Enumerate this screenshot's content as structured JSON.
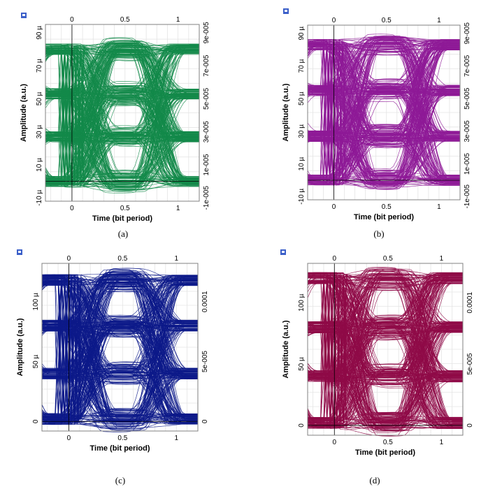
{
  "chart_data": [
    {
      "type": "line",
      "subtype": "eye-diagram",
      "caption": "(a)",
      "color": "#138a4a",
      "xlabel": "Time (bit period)",
      "ylabel": "Amplitude (a.u.)",
      "xlim": [
        -0.25,
        1.2
      ],
      "ylim": [
        -12,
        95
      ],
      "levels": [
        0,
        27,
        53,
        80
      ],
      "x_ticks": [
        "0",
        "0.5",
        "1"
      ],
      "x_top_ticks": [
        "0",
        "0.5",
        "1"
      ],
      "y_left_ticks": [
        "-10 µ",
        "10 µ",
        "30 µ",
        "50 µ",
        "70 µ",
        "90 µ"
      ],
      "y_right_ticks": [
        "-1e-005",
        "1e-005",
        "3e-005",
        "5e-005",
        "7e-005",
        "9e-005"
      ]
    },
    {
      "type": "line",
      "subtype": "eye-diagram",
      "caption": "(b)",
      "color": "#8e1a96",
      "xlabel": "Time (bit period)",
      "ylabel": "Amplitude (a.u.)",
      "xlim": [
        -0.25,
        1.2
      ],
      "ylim": [
        -12,
        95
      ],
      "levels": [
        0,
        27,
        55,
        83
      ],
      "x_ticks": [
        "0",
        "0.5",
        "1"
      ],
      "x_top_ticks": [
        "0",
        "0.5",
        "1"
      ],
      "y_left_ticks": [
        "-10 µ",
        "10 µ",
        "30 µ",
        "50 µ",
        "70 µ",
        "90 µ"
      ],
      "y_right_ticks": [
        "-1e-005",
        "1e-005",
        "3e-005",
        "5e-005",
        "7e-005",
        "9e-005"
      ]
    },
    {
      "type": "line",
      "subtype": "eye-diagram",
      "caption": "(c)",
      "color": "#0d1a8a",
      "xlabel": "Time (bit period)",
      "ylabel": "Amplitude (a.u.)",
      "xlim": [
        -0.25,
        1.2
      ],
      "ylim": [
        -8,
        132
      ],
      "levels": [
        2,
        40,
        80,
        118
      ],
      "x_ticks": [
        "0",
        "0.5",
        "1"
      ],
      "x_top_ticks": [
        "0",
        "0.5",
        "1"
      ],
      "y_left_ticks": [
        "0",
        "50 µ",
        "100 µ"
      ],
      "y_right_ticks": [
        "0",
        "5e-005",
        "0.0001"
      ]
    },
    {
      "type": "line",
      "subtype": "eye-diagram",
      "caption": "(d)",
      "color": "#8f0a48",
      "xlabel": "Time (bit period)",
      "ylabel": "Amplitude (a.u.)",
      "xlim": [
        -0.25,
        1.2
      ],
      "ylim": [
        -8,
        132
      ],
      "levels": [
        2,
        40,
        80,
        120
      ],
      "x_ticks": [
        "0",
        "0.5",
        "1"
      ],
      "x_top_ticks": [
        "0",
        "0.5",
        "1"
      ],
      "y_left_ticks": [
        "0",
        "50 µ",
        "100 µ"
      ],
      "y_right_ticks": [
        "0",
        "5e-005",
        "0.0001"
      ]
    }
  ]
}
